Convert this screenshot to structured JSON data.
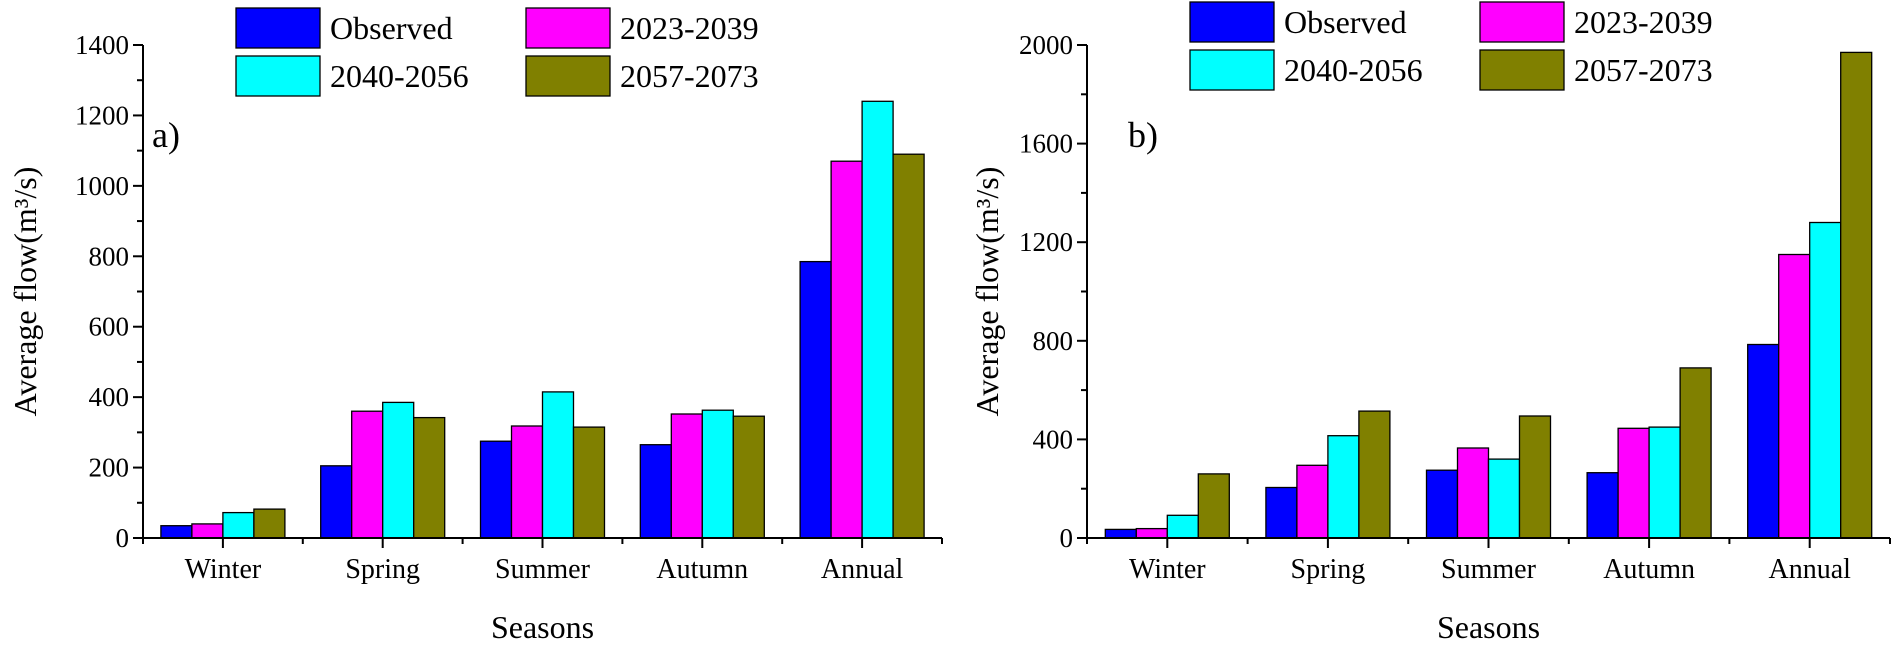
{
  "colors": {
    "Observed": "#0000FF",
    "2023-2039": "#FF00FF",
    "2040-2056": "#00FFFF",
    "2057-2073": "#808000"
  },
  "chart_data": [
    {
      "type": "bar",
      "panel_label": "a)",
      "xlabel": "Seasons",
      "ylabel": "Average flow(m³/s)",
      "categories": [
        "Winter",
        "Spring",
        "Summer",
        "Autumn",
        "Annual"
      ],
      "ylim": [
        0,
        1400
      ],
      "yticks": [
        0,
        200,
        400,
        600,
        800,
        1000,
        1200,
        1400
      ],
      "legend": [
        "Observed",
        "2023-2039",
        "2040-2056",
        "2057-2073"
      ],
      "series": [
        {
          "name": "Observed",
          "values": [
            35,
            205,
            275,
            265,
            785
          ]
        },
        {
          "name": "2023-2039",
          "values": [
            40,
            360,
            318,
            352,
            1070
          ]
        },
        {
          "name": "2040-2056",
          "values": [
            72,
            385,
            415,
            363,
            1240
          ]
        },
        {
          "name": "2057-2073",
          "values": [
            82,
            342,
            315,
            346,
            1090
          ]
        }
      ]
    },
    {
      "type": "bar",
      "panel_label": "b)",
      "xlabel": "Seasons",
      "ylabel": "Average flow(m³/s)",
      "categories": [
        "Winter",
        "Spring",
        "Summer",
        "Autumn",
        "Annual"
      ],
      "ylim": [
        0,
        2000
      ],
      "yticks": [
        0,
        400,
        800,
        1200,
        1600,
        2000
      ],
      "legend": [
        "Observed",
        "2023-2039",
        "2040-2056",
        "2057-2073"
      ],
      "series": [
        {
          "name": "Observed",
          "values": [
            35,
            205,
            275,
            265,
            785
          ]
        },
        {
          "name": "2023-2039",
          "values": [
            38,
            295,
            365,
            445,
            1150
          ]
        },
        {
          "name": "2040-2056",
          "values": [
            92,
            415,
            320,
            450,
            1280
          ]
        },
        {
          "name": "2057-2073",
          "values": [
            260,
            515,
            495,
            690,
            1970
          ]
        }
      ]
    }
  ]
}
